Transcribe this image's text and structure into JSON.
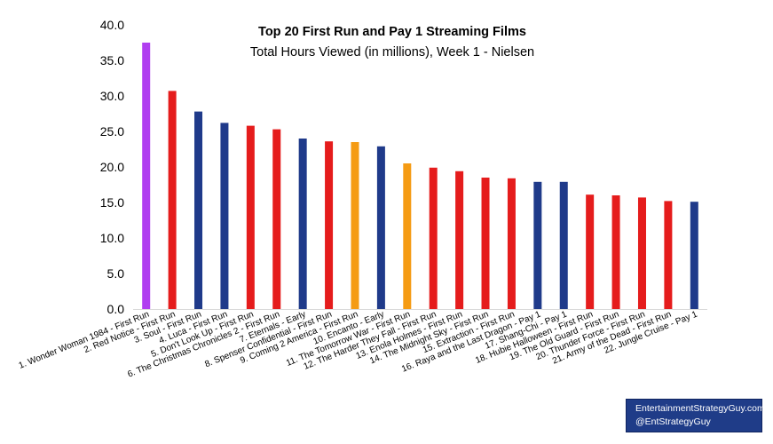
{
  "chart_data": {
    "type": "bar",
    "title": "Top 20 First Run and Pay 1 Streaming Films",
    "subtitle": "Total Hours Viewed (in millions), Week 1 - Nielsen",
    "ylim": [
      0,
      40
    ],
    "yticks": [
      "0.0",
      "5.0",
      "10.0",
      "15.0",
      "20.0",
      "25.0",
      "30.0",
      "35.0",
      "40.0"
    ],
    "grid": false,
    "categories": [
      "1. Wonder Woman 1984 - First Run",
      "2. Red Notice - First Run",
      "3. Soul - First Run",
      "4. Luca - First Run",
      "5. Don't Look Up - First Run",
      "6. The Christmas Chronicles 2 - First Run",
      "7. Eternals - Early",
      "8. Spenser Confidential - First Run",
      "9. Coming 2 America - First Run",
      "10. Encanto - Early",
      "11. The Tomorrow War - First Run",
      "12. The Harder They Fall - First Run",
      "13. Enola Holmes - First Run",
      "14. The Midnight Sky - First Run",
      "15. Extraction - First Run",
      "16. Raya and the Last Dragon - Pay 1",
      "17. Shang-Chi - Pay 1",
      "18. Hubie Halloween - First Run",
      "19. The Old Guard - First Run",
      "20. Thunder Force - First Run",
      "21. Army of the Dead - First Run",
      "22. Jungle Cruise - Pay 1"
    ],
    "values": [
      37.5,
      30.7,
      27.8,
      26.2,
      25.8,
      25.3,
      24.0,
      23.6,
      23.5,
      22.9,
      20.5,
      19.9,
      19.4,
      18.5,
      18.4,
      17.9,
      17.9,
      16.1,
      16.0,
      15.7,
      15.2,
      15.1
    ],
    "colors": [
      "#b03ef0",
      "#e51c1c",
      "#1f3a8a",
      "#1f3a8a",
      "#e51c1c",
      "#e51c1c",
      "#1f3a8a",
      "#e51c1c",
      "#f59b13",
      "#1f3a8a",
      "#f59b13",
      "#e51c1c",
      "#e51c1c",
      "#e51c1c",
      "#e51c1c",
      "#1f3a8a",
      "#1f3a8a",
      "#e51c1c",
      "#e51c1c",
      "#e51c1c",
      "#e51c1c",
      "#1f3a8a"
    ]
  },
  "credit": {
    "line1": "EntertainmentStrategyGuy.com",
    "line2": "@EntStrategyGuy"
  }
}
